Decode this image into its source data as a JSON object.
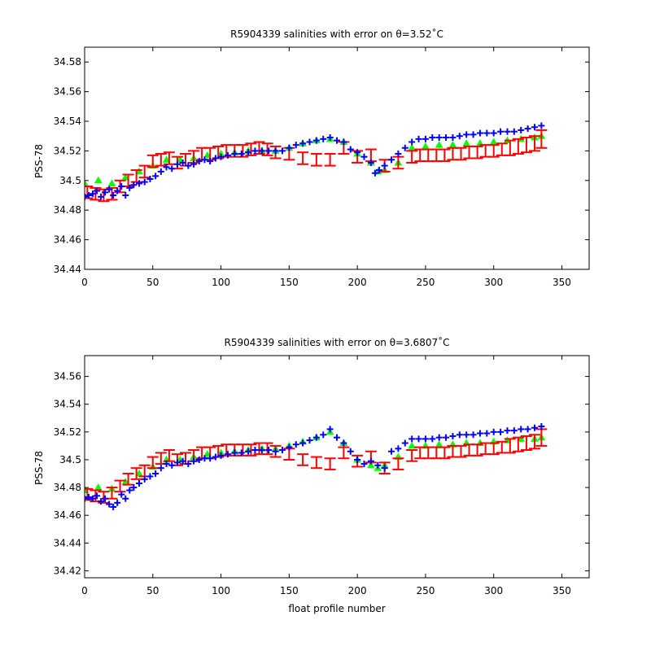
{
  "colors": {
    "background": "#ffffff",
    "axis": "#000000",
    "mapped_series": "#00ff00",
    "error_bars": "#ff0000",
    "float_data": "#0000ff"
  },
  "chart_data": [
    {
      "type": "scatter",
      "title": "R5904339 salinities with error on θ=3.52˚C",
      "xlabel": "",
      "ylabel": "PSS-78",
      "xlim": [
        0,
        370
      ],
      "ylim": [
        34.44,
        34.59
      ],
      "xticks": [
        0,
        50,
        100,
        150,
        200,
        250,
        300,
        350
      ],
      "yticks": [
        34.44,
        34.46,
        34.48,
        34.5,
        34.52,
        34.54,
        34.56,
        34.58
      ],
      "ytick_labels": [
        "34.44",
        "34.46",
        "34.48",
        "34.5",
        "34.52",
        "34.54",
        "34.56",
        "34.58"
      ],
      "grid": false,
      "series": [
        {
          "key": "mapped",
          "marker": "filled-triangle",
          "x": [
            0,
            10,
            20,
            30,
            40,
            50,
            60,
            70,
            80,
            90,
            100,
            110,
            120,
            130,
            140,
            150,
            160,
            170,
            180,
            190,
            200,
            210,
            215,
            220,
            230,
            240,
            250,
            260,
            270,
            280,
            290,
            300,
            310,
            320,
            330,
            335
          ],
          "y": [
            34.498,
            34.5,
            34.498,
            34.502,
            34.506,
            34.51,
            34.514,
            34.514,
            34.515,
            34.517,
            34.518,
            34.519,
            34.52,
            34.52,
            34.52,
            34.522,
            34.525,
            34.527,
            34.528,
            34.526,
            34.518,
            34.512,
            34.506,
            34.507,
            34.512,
            34.522,
            34.523,
            34.524,
            34.524,
            34.525,
            34.525,
            34.526,
            34.527,
            34.528,
            34.529,
            34.53
          ]
        },
        {
          "key": "mapped_with_error",
          "marker": "errorbar",
          "x": [
            2,
            8,
            14,
            20,
            26,
            32,
            38,
            44,
            50,
            56,
            62,
            68,
            74,
            80,
            86,
            92,
            98,
            104,
            110,
            116,
            122,
            128,
            134,
            140,
            150,
            160,
            170,
            180,
            190,
            200,
            210,
            220,
            230,
            240,
            246,
            252,
            258,
            264,
            270,
            276,
            282,
            288,
            294,
            300,
            306,
            312,
            318,
            324,
            330,
            335
          ],
          "y": [
            34.492,
            34.491,
            34.49,
            34.491,
            34.496,
            34.5,
            34.503,
            34.506,
            34.513,
            34.514,
            34.515,
            34.512,
            34.514,
            34.516,
            34.518,
            34.518,
            34.519,
            34.52,
            34.52,
            34.52,
            34.521,
            34.522,
            34.521,
            34.519,
            34.518,
            34.515,
            34.514,
            34.514,
            34.522,
            34.516,
            34.517,
            34.51,
            34.512,
            34.516,
            34.517,
            34.517,
            34.517,
            34.517,
            34.518,
            34.518,
            34.519,
            34.519,
            34.52,
            34.52,
            34.521,
            34.522,
            34.523,
            34.524,
            34.525,
            34.528
          ],
          "err": [
            0.004,
            0.004,
            0.004,
            0.004,
            0.004,
            0.004,
            0.004,
            0.004,
            0.004,
            0.004,
            0.004,
            0.004,
            0.004,
            0.004,
            0.004,
            0.004,
            0.004,
            0.004,
            0.004,
            0.004,
            0.004,
            0.004,
            0.004,
            0.004,
            0.004,
            0.004,
            0.004,
            0.004,
            0.004,
            0.004,
            0.004,
            0.004,
            0.004,
            0.004,
            0.004,
            0.004,
            0.004,
            0.004,
            0.004,
            0.004,
            0.004,
            0.004,
            0.004,
            0.004,
            0.004,
            0.005,
            0.005,
            0.005,
            0.005,
            0.006
          ]
        },
        {
          "key": "float",
          "marker": "plus",
          "x": [
            0,
            3,
            6,
            9,
            12,
            15,
            18,
            21,
            24,
            27,
            30,
            33,
            36,
            40,
            44,
            48,
            52,
            56,
            60,
            64,
            68,
            72,
            76,
            80,
            84,
            88,
            92,
            96,
            100,
            105,
            110,
            115,
            120,
            125,
            130,
            135,
            140,
            145,
            150,
            155,
            160,
            165,
            170,
            175,
            180,
            185,
            190,
            195,
            200,
            205,
            210,
            213,
            216,
            220,
            225,
            230,
            235,
            240,
            245,
            250,
            255,
            260,
            265,
            270,
            275,
            280,
            285,
            290,
            295,
            300,
            305,
            310,
            315,
            320,
            325,
            330,
            335
          ],
          "y": [
            34.489,
            34.49,
            34.491,
            34.493,
            34.489,
            34.492,
            34.494,
            34.49,
            34.493,
            34.496,
            34.49,
            34.495,
            34.497,
            34.498,
            34.499,
            34.501,
            34.503,
            34.506,
            34.509,
            34.508,
            34.511,
            34.512,
            34.51,
            34.511,
            34.513,
            34.514,
            34.513,
            34.515,
            34.516,
            34.517,
            34.518,
            34.518,
            34.519,
            34.52,
            34.52,
            34.52,
            34.52,
            34.52,
            34.522,
            34.524,
            34.525,
            34.526,
            34.527,
            34.528,
            34.529,
            34.527,
            34.526,
            34.521,
            34.519,
            34.516,
            34.512,
            34.505,
            34.507,
            34.51,
            34.514,
            34.518,
            34.522,
            34.526,
            34.528,
            34.528,
            34.529,
            34.529,
            34.529,
            34.529,
            34.53,
            34.531,
            34.531,
            34.532,
            34.532,
            34.532,
            34.533,
            34.533,
            34.533,
            34.534,
            34.535,
            34.536,
            34.537
          ]
        }
      ]
    },
    {
      "type": "scatter",
      "title": "R5904339 salinities with error on θ=3.6807˚C",
      "xlabel": "float profile number",
      "ylabel": "PSS-78",
      "xlim": [
        0,
        370
      ],
      "ylim": [
        34.415,
        34.575
      ],
      "xticks": [
        0,
        50,
        100,
        150,
        200,
        250,
        300,
        350
      ],
      "yticks": [
        34.42,
        34.44,
        34.46,
        34.48,
        34.5,
        34.52,
        34.54,
        34.56
      ],
      "ytick_labels": [
        "34.42",
        "34.44",
        "34.46",
        "34.48",
        "34.5",
        "34.52",
        "34.54",
        "34.56"
      ],
      "grid": false,
      "series": [
        {
          "key": "mapped",
          "marker": "filled-triangle",
          "x": [
            0,
            10,
            20,
            30,
            40,
            50,
            60,
            70,
            80,
            90,
            100,
            110,
            120,
            130,
            140,
            150,
            160,
            170,
            180,
            190,
            200,
            210,
            215,
            220,
            230,
            240,
            250,
            260,
            270,
            280,
            290,
            300,
            310,
            320,
            330,
            335
          ],
          "y": [
            34.478,
            34.48,
            34.479,
            34.484,
            34.49,
            34.495,
            34.5,
            34.5,
            34.502,
            34.504,
            34.505,
            34.506,
            34.507,
            34.508,
            34.508,
            34.51,
            34.513,
            34.516,
            34.52,
            34.512,
            34.5,
            34.496,
            34.494,
            34.496,
            34.502,
            34.51,
            34.51,
            34.511,
            34.511,
            34.512,
            34.512,
            34.513,
            34.514,
            34.515,
            34.515,
            34.516
          ]
        },
        {
          "key": "mapped_with_error",
          "marker": "errorbar",
          "x": [
            2,
            8,
            14,
            20,
            26,
            32,
            38,
            44,
            50,
            56,
            62,
            68,
            74,
            80,
            86,
            92,
            98,
            104,
            110,
            116,
            122,
            128,
            134,
            140,
            150,
            160,
            170,
            180,
            190,
            200,
            210,
            220,
            230,
            240,
            246,
            252,
            258,
            264,
            270,
            276,
            282,
            288,
            294,
            300,
            306,
            312,
            318,
            324,
            330,
            335
          ],
          "y": [
            34.475,
            34.474,
            34.473,
            34.476,
            34.481,
            34.486,
            34.49,
            34.492,
            34.498,
            34.501,
            34.503,
            34.5,
            34.501,
            34.503,
            34.505,
            34.505,
            34.506,
            34.507,
            34.507,
            34.507,
            34.507,
            34.508,
            34.508,
            34.506,
            34.504,
            34.5,
            34.498,
            34.497,
            34.505,
            34.499,
            34.502,
            34.494,
            34.497,
            34.503,
            34.505,
            34.505,
            34.505,
            34.505,
            34.506,
            34.506,
            34.507,
            34.507,
            34.508,
            34.508,
            34.509,
            34.51,
            34.511,
            34.512,
            34.513,
            34.516
          ],
          "err": [
            0.004,
            0.004,
            0.004,
            0.004,
            0.004,
            0.004,
            0.004,
            0.004,
            0.004,
            0.004,
            0.004,
            0.004,
            0.004,
            0.004,
            0.004,
            0.004,
            0.004,
            0.004,
            0.004,
            0.004,
            0.004,
            0.004,
            0.004,
            0.004,
            0.004,
            0.004,
            0.004,
            0.004,
            0.004,
            0.004,
            0.004,
            0.004,
            0.004,
            0.004,
            0.004,
            0.004,
            0.004,
            0.004,
            0.004,
            0.004,
            0.004,
            0.004,
            0.004,
            0.004,
            0.004,
            0.005,
            0.005,
            0.005,
            0.005,
            0.006
          ]
        },
        {
          "key": "float",
          "marker": "plus",
          "x": [
            0,
            3,
            6,
            9,
            12,
            15,
            18,
            21,
            24,
            27,
            30,
            33,
            36,
            40,
            44,
            48,
            52,
            56,
            60,
            64,
            68,
            72,
            76,
            80,
            84,
            88,
            92,
            96,
            100,
            105,
            110,
            115,
            120,
            125,
            130,
            135,
            140,
            145,
            150,
            155,
            160,
            165,
            170,
            175,
            180,
            185,
            190,
            195,
            200,
            205,
            210,
            215,
            220,
            225,
            230,
            235,
            240,
            245,
            250,
            255,
            260,
            265,
            270,
            275,
            280,
            285,
            290,
            295,
            300,
            305,
            310,
            315,
            320,
            325,
            330,
            335
          ],
          "y": [
            34.472,
            34.473,
            34.472,
            34.474,
            34.47,
            34.472,
            34.468,
            34.466,
            34.469,
            34.475,
            34.472,
            34.478,
            34.48,
            34.483,
            34.486,
            34.488,
            34.49,
            34.494,
            34.497,
            34.496,
            34.498,
            34.499,
            34.497,
            34.499,
            34.5,
            34.501,
            34.501,
            34.502,
            34.503,
            34.504,
            34.505,
            34.505,
            34.506,
            34.507,
            34.507,
            34.507,
            34.506,
            34.507,
            34.509,
            34.511,
            34.512,
            34.514,
            34.516,
            34.518,
            34.522,
            34.516,
            34.512,
            34.506,
            34.5,
            34.497,
            34.499,
            34.496,
            34.494,
            34.506,
            34.508,
            34.512,
            34.515,
            34.515,
            34.515,
            34.515,
            34.516,
            34.516,
            34.517,
            34.518,
            34.518,
            34.518,
            34.519,
            34.519,
            34.52,
            34.52,
            34.521,
            34.521,
            34.522,
            34.522,
            34.523,
            34.524
          ]
        }
      ]
    }
  ]
}
